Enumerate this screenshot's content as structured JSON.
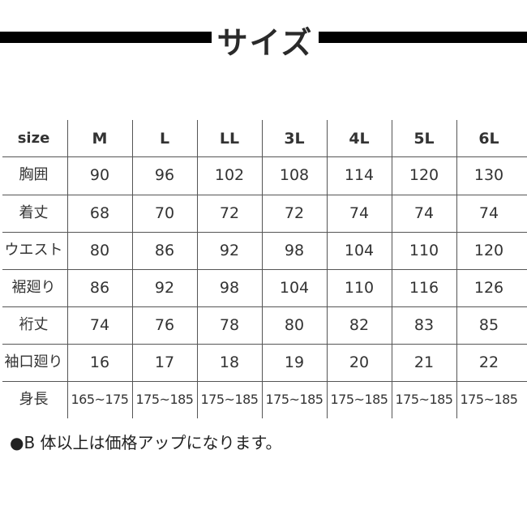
{
  "title": "サイズ",
  "table": {
    "corner": "size",
    "columns": [
      "M",
      "L",
      "LL",
      "3L",
      "4L",
      "5L",
      "6L"
    ],
    "rows": [
      {
        "label": "胸囲",
        "values": [
          "90",
          "96",
          "102",
          "108",
          "114",
          "120",
          "130"
        ]
      },
      {
        "label": "着丈",
        "values": [
          "68",
          "70",
          "72",
          "72",
          "74",
          "74",
          "74"
        ]
      },
      {
        "label": "ウエスト",
        "values": [
          "80",
          "86",
          "92",
          "98",
          "104",
          "110",
          "120"
        ]
      },
      {
        "label": "裾廻り",
        "values": [
          "86",
          "92",
          "98",
          "104",
          "110",
          "116",
          "126"
        ]
      },
      {
        "label": "裄丈",
        "values": [
          "74",
          "76",
          "78",
          "80",
          "82",
          "83",
          "85"
        ]
      },
      {
        "label": "袖口廻り",
        "values": [
          "16",
          "17",
          "18",
          "19",
          "20",
          "21",
          "22"
        ]
      },
      {
        "label": "身長",
        "values": [
          "165~175",
          "175~185",
          "175~185",
          "175~185",
          "175~185",
          "175~185",
          "175~185"
        ]
      }
    ]
  },
  "note": "●B 体以上は価格アップになります。"
}
